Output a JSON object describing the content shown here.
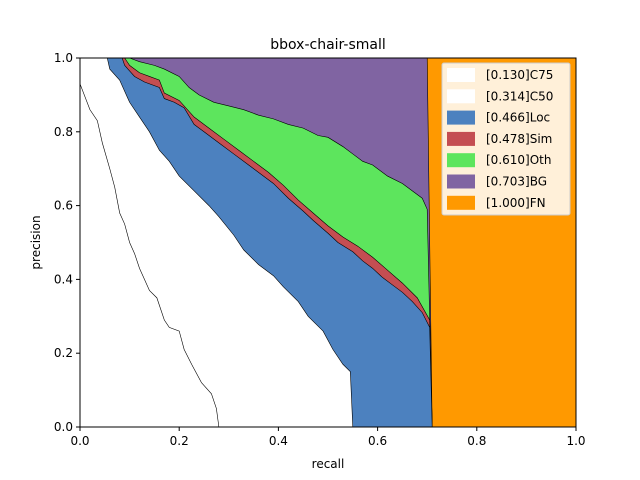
{
  "chart_data": {
    "type": "area",
    "title": "bbox-chair-small",
    "xlabel": "recall",
    "ylabel": "precision",
    "xlim": [
      0,
      1
    ],
    "ylim": [
      0,
      1
    ],
    "x_ticks": [
      "0.0",
      "0.2",
      "0.4",
      "0.6",
      "0.8",
      "1.0"
    ],
    "y_ticks": [
      "0.0",
      "0.2",
      "0.4",
      "0.6",
      "0.8",
      "1.0"
    ],
    "legend_position": "top-right",
    "grid": false,
    "series": [
      {
        "name": "[0.130]C75",
        "color": "#ffffff",
        "points": [
          [
            0,
            1
          ],
          [
            0,
            0.93
          ],
          [
            0.02,
            0.86
          ],
          [
            0.035,
            0.83
          ],
          [
            0.045,
            0.77
          ],
          [
            0.06,
            0.7
          ],
          [
            0.07,
            0.65
          ],
          [
            0.08,
            0.58
          ],
          [
            0.09,
            0.55
          ],
          [
            0.1,
            0.5
          ],
          [
            0.11,
            0.47
          ],
          [
            0.12,
            0.43
          ],
          [
            0.13,
            0.4
          ],
          [
            0.14,
            0.37
          ],
          [
            0.155,
            0.35
          ],
          [
            0.17,
            0.29
          ],
          [
            0.18,
            0.27
          ],
          [
            0.2,
            0.26
          ],
          [
            0.21,
            0.21
          ],
          [
            0.225,
            0.17
          ],
          [
            0.245,
            0.12
          ],
          [
            0.265,
            0.09
          ],
          [
            0.275,
            0.05
          ],
          [
            0.28,
            0
          ]
        ]
      },
      {
        "name": "[0.314]C50",
        "color": "#ffffff",
        "points": [
          [
            0,
            1
          ],
          [
            0.055,
            1
          ],
          [
            0.06,
            0.97
          ],
          [
            0.08,
            0.94
          ],
          [
            0.1,
            0.88
          ],
          [
            0.12,
            0.84
          ],
          [
            0.14,
            0.8
          ],
          [
            0.16,
            0.75
          ],
          [
            0.18,
            0.72
          ],
          [
            0.2,
            0.68
          ],
          [
            0.23,
            0.64
          ],
          [
            0.26,
            0.6
          ],
          [
            0.28,
            0.57
          ],
          [
            0.31,
            0.52
          ],
          [
            0.33,
            0.48
          ],
          [
            0.36,
            0.44
          ],
          [
            0.39,
            0.41
          ],
          [
            0.41,
            0.38
          ],
          [
            0.44,
            0.34
          ],
          [
            0.46,
            0.3
          ],
          [
            0.49,
            0.26
          ],
          [
            0.51,
            0.21
          ],
          [
            0.53,
            0.17
          ],
          [
            0.545,
            0.15
          ],
          [
            0.55,
            0
          ]
        ]
      },
      {
        "name": "[0.466]Loc",
        "color": "#4c81bf",
        "points": [
          [
            0,
            1
          ],
          [
            0.085,
            1
          ],
          [
            0.09,
            0.98
          ],
          [
            0.11,
            0.95
          ],
          [
            0.13,
            0.935
          ],
          [
            0.16,
            0.92
          ],
          [
            0.17,
            0.89
          ],
          [
            0.19,
            0.88
          ],
          [
            0.21,
            0.865
          ],
          [
            0.23,
            0.82
          ],
          [
            0.25,
            0.8
          ],
          [
            0.28,
            0.77
          ],
          [
            0.31,
            0.74
          ],
          [
            0.34,
            0.71
          ],
          [
            0.37,
            0.68
          ],
          [
            0.39,
            0.66
          ],
          [
            0.42,
            0.62
          ],
          [
            0.45,
            0.585
          ],
          [
            0.47,
            0.56
          ],
          [
            0.5,
            0.525
          ],
          [
            0.52,
            0.5
          ],
          [
            0.55,
            0.475
          ],
          [
            0.57,
            0.45
          ],
          [
            0.59,
            0.43
          ],
          [
            0.61,
            0.405
          ],
          [
            0.63,
            0.385
          ],
          [
            0.65,
            0.365
          ],
          [
            0.67,
            0.34
          ],
          [
            0.69,
            0.31
          ],
          [
            0.705,
            0.27
          ],
          [
            0.71,
            0
          ]
        ]
      },
      {
        "name": "[0.478]Sim",
        "color": "#c44e52",
        "points": [
          [
            0,
            1
          ],
          [
            0.09,
            1
          ],
          [
            0.1,
            0.98
          ],
          [
            0.12,
            0.96
          ],
          [
            0.14,
            0.95
          ],
          [
            0.16,
            0.94
          ],
          [
            0.17,
            0.905
          ],
          [
            0.2,
            0.885
          ],
          [
            0.23,
            0.84
          ],
          [
            0.26,
            0.81
          ],
          [
            0.29,
            0.78
          ],
          [
            0.32,
            0.75
          ],
          [
            0.35,
            0.72
          ],
          [
            0.38,
            0.69
          ],
          [
            0.41,
            0.655
          ],
          [
            0.44,
            0.615
          ],
          [
            0.47,
            0.58
          ],
          [
            0.5,
            0.545
          ],
          [
            0.53,
            0.515
          ],
          [
            0.56,
            0.49
          ],
          [
            0.59,
            0.46
          ],
          [
            0.62,
            0.425
          ],
          [
            0.65,
            0.39
          ],
          [
            0.68,
            0.35
          ],
          [
            0.705,
            0.29
          ],
          [
            0.71,
            0
          ]
        ]
      },
      {
        "name": "[0.610]Oth",
        "color": "#5de55d",
        "points": [
          [
            0,
            1
          ],
          [
            0.1,
            1
          ],
          [
            0.12,
            0.99
          ],
          [
            0.15,
            0.98
          ],
          [
            0.17,
            0.97
          ],
          [
            0.2,
            0.95
          ],
          [
            0.22,
            0.92
          ],
          [
            0.24,
            0.9
          ],
          [
            0.27,
            0.88
          ],
          [
            0.3,
            0.87
          ],
          [
            0.33,
            0.86
          ],
          [
            0.36,
            0.845
          ],
          [
            0.39,
            0.835
          ],
          [
            0.42,
            0.82
          ],
          [
            0.45,
            0.81
          ],
          [
            0.48,
            0.79
          ],
          [
            0.5,
            0.785
          ],
          [
            0.53,
            0.76
          ],
          [
            0.55,
            0.74
          ],
          [
            0.57,
            0.72
          ],
          [
            0.59,
            0.71
          ],
          [
            0.62,
            0.68
          ],
          [
            0.65,
            0.66
          ],
          [
            0.67,
            0.64
          ],
          [
            0.69,
            0.62
          ],
          [
            0.7,
            0.59
          ],
          [
            0.71,
            0
          ]
        ]
      },
      {
        "name": "[0.703]BG",
        "color": "#8064a2",
        "points": [
          [
            0,
            1
          ],
          [
            0.7,
            1
          ],
          [
            0.71,
            0
          ]
        ]
      },
      {
        "name": "[1.000]FN",
        "color": "#ff9900",
        "points": [
          [
            0,
            1
          ],
          [
            1,
            1
          ],
          [
            1,
            0
          ]
        ]
      }
    ]
  }
}
